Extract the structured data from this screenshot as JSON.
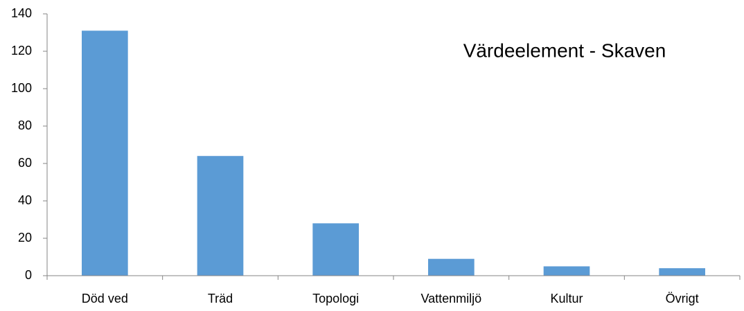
{
  "chart_data": {
    "type": "bar",
    "title": "Värdeelement - Skaven",
    "categories": [
      "Död ved",
      "Träd",
      "Topologi",
      "Vattenmiljö",
      "Kultur",
      "Övrigt"
    ],
    "values": [
      131,
      64,
      28,
      9,
      5,
      4
    ],
    "color": "#5b9bd5",
    "ylim": [
      0,
      140
    ],
    "yticks": [
      0,
      20,
      40,
      60,
      80,
      100,
      120,
      140
    ],
    "grid": false
  }
}
